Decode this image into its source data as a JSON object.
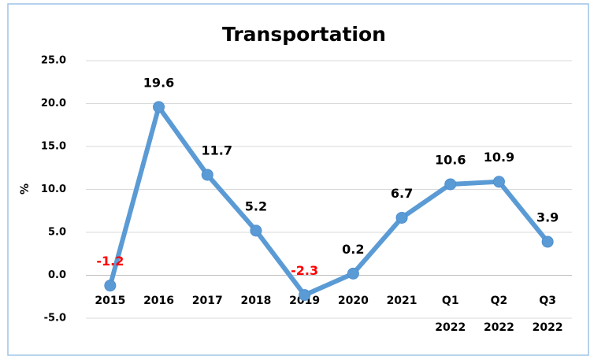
{
  "chart_data": {
    "type": "line",
    "title": "Transportation",
    "y_label": "%",
    "categories": [
      "2015",
      "2016",
      "2017",
      "2018",
      "2019",
      "2020",
      "2021",
      "Q1 2022",
      "Q2 2022",
      "Q3 2022"
    ],
    "series": [
      {
        "color": "#5b9bd5",
        "values": [
          -1.2,
          19.6,
          11.7,
          5.2,
          -2.3,
          0.2,
          6.7,
          10.6,
          10.9,
          3.9
        ]
      }
    ],
    "negative_label_color": "#ff0000",
    "ylim": [
      -5,
      25
    ],
    "yticks": [
      {
        "value": -5,
        "label": "-5.0"
      },
      {
        "value": 0,
        "label": "0.0"
      },
      {
        "value": 5,
        "label": "5.0"
      },
      {
        "value": 10,
        "label": "10.0"
      },
      {
        "value": 15,
        "label": "15.0"
      },
      {
        "value": 20,
        "label": "20.0"
      },
      {
        "value": 25,
        "label": "25.0"
      }
    ],
    "grid": true
  }
}
